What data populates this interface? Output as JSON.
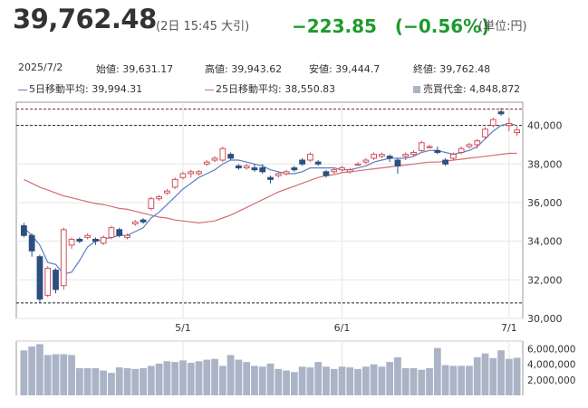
{
  "header": {
    "price": "39,762.48",
    "meta": "(2日 15:45 大引)",
    "change": "−223.85　(−0.56%)",
    "unit": "(単位:円)"
  },
  "summary": {
    "date": "2025/7/2",
    "open": "始値: 39,631.17",
    "high": "高値: 39,943.62",
    "low": "安値: 39,444.7",
    "close": "終値: 39,762.48"
  },
  "legend": {
    "ma5": "5日移動平均: 39,994.31",
    "ma25": "25日移動平均: 38,550.83",
    "turnover": "売買代金: 4,848,872"
  },
  "colors": {
    "up": "#d0505a",
    "down": "#2c4f80",
    "ma5": "#5b7fc1",
    "ma25": "#d36d72",
    "volume": "#aab4c6",
    "change": "#1e9a2d",
    "reference_line": "#8b1a1a"
  },
  "chart_data": {
    "type": "candlestick",
    "ylim": [
      30000,
      41200
    ],
    "y_ticks": [
      "40,000",
      "38,000",
      "36,000",
      "34,000",
      "32,000",
      "30,000"
    ],
    "x_ticks": [
      "5/1",
      "6/1",
      "7/1"
    ],
    "reference_lines": [
      40844,
      40000,
      30800
    ],
    "candles": [
      [
        34800,
        34950,
        34200,
        34300
      ],
      [
        34300,
        34400,
        33200,
        33500
      ],
      [
        33200,
        33300,
        30800,
        31000
      ],
      [
        31200,
        32700,
        31100,
        32600
      ],
      [
        32500,
        32600,
        31300,
        31500
      ],
      [
        31700,
        34700,
        31500,
        34600
      ],
      [
        33800,
        34200,
        33600,
        34100
      ],
      [
        34100,
        34200,
        33900,
        34000
      ],
      [
        34200,
        34400,
        34100,
        34300
      ],
      [
        34100,
        34200,
        33800,
        34000
      ],
      [
        33900,
        34300,
        33800,
        34200
      ],
      [
        34200,
        34800,
        34100,
        34700
      ],
      [
        34600,
        34700,
        34200,
        34300
      ],
      [
        34200,
        34400,
        34100,
        34300
      ],
      [
        34900,
        35100,
        34800,
        35000
      ],
      [
        35100,
        35200,
        34900,
        35000
      ],
      [
        35700,
        36300,
        35600,
        36200
      ],
      [
        36200,
        36400,
        36100,
        36300
      ],
      [
        36500,
        36700,
        36400,
        36600
      ],
      [
        36800,
        37300,
        36700,
        37200
      ],
      [
        37300,
        37600,
        37200,
        37500
      ],
      [
        37500,
        37700,
        37300,
        37600
      ],
      [
        37500,
        37700,
        37400,
        37600
      ],
      [
        38000,
        38200,
        37900,
        38100
      ],
      [
        38200,
        38400,
        38100,
        38300
      ],
      [
        38200,
        38900,
        38100,
        38800
      ],
      [
        38500,
        38600,
        38200,
        38300
      ],
      [
        37900,
        38000,
        37700,
        37800
      ],
      [
        37800,
        38000,
        37700,
        37900
      ],
      [
        37800,
        38000,
        37600,
        37700
      ],
      [
        37800,
        38000,
        37500,
        37600
      ],
      [
        37300,
        37400,
        37000,
        37200
      ],
      [
        37400,
        37600,
        37300,
        37500
      ],
      [
        37500,
        37700,
        37400,
        37600
      ],
      [
        37800,
        37900,
        37600,
        37700
      ],
      [
        38200,
        38300,
        37900,
        38000
      ],
      [
        38200,
        38600,
        38100,
        38500
      ],
      [
        38100,
        38200,
        37900,
        38000
      ],
      [
        37600,
        37700,
        37300,
        37400
      ],
      [
        37600,
        37800,
        37500,
        37700
      ],
      [
        37700,
        37900,
        37600,
        37800
      ],
      [
        37600,
        37800,
        37500,
        37700
      ],
      [
        38000,
        38100,
        37900,
        38000
      ],
      [
        38100,
        38300,
        38000,
        38200
      ],
      [
        38300,
        38600,
        38200,
        38500
      ],
      [
        38400,
        38600,
        38300,
        38500
      ],
      [
        38400,
        38500,
        38100,
        38300
      ],
      [
        38200,
        38300,
        37500,
        37900
      ],
      [
        38400,
        38600,
        38200,
        38500
      ],
      [
        38500,
        38700,
        38400,
        38600
      ],
      [
        38700,
        39200,
        38600,
        39100
      ],
      [
        38900,
        39000,
        38800,
        38900
      ],
      [
        38700,
        38900,
        38500,
        38600
      ],
      [
        38200,
        38300,
        37900,
        38000
      ],
      [
        38300,
        38600,
        38200,
        38500
      ],
      [
        38600,
        38900,
        38500,
        38800
      ],
      [
        38900,
        39100,
        38800,
        39000
      ],
      [
        39000,
        39300,
        38800,
        39200
      ],
      [
        39400,
        39900,
        39300,
        39800
      ],
      [
        40000,
        40400,
        39900,
        40300
      ],
      [
        40700,
        40900,
        40500,
        40600
      ],
      [
        40000,
        40400,
        39700,
        40100
      ],
      [
        39632,
        39944,
        39445,
        39762
      ]
    ],
    "ma5": [
      34700,
      34300,
      33800,
      32900,
      32800,
      32300,
      32400,
      33000,
      33700,
      34000,
      34100,
      34200,
      34300,
      34300,
      34500,
      34700,
      35200,
      35500,
      35900,
      36300,
      36700,
      37000,
      37300,
      37500,
      37700,
      38000,
      38200,
      38200,
      38100,
      38000,
      37900,
      37700,
      37600,
      37500,
      37500,
      37600,
      37800,
      37800,
      37800,
      37800,
      37700,
      37700,
      37800,
      37900,
      38100,
      38200,
      38300,
      38300,
      38300,
      38400,
      38600,
      38700,
      38700,
      38600,
      38500,
      38600,
      38700,
      38900,
      39300,
      39700,
      40000,
      40100,
      39994
    ],
    "ma25": [
      37200,
      37000,
      36800,
      36650,
      36500,
      36350,
      36250,
      36150,
      36050,
      35950,
      35900,
      35800,
      35700,
      35650,
      35550,
      35450,
      35350,
      35250,
      35200,
      35100,
      35050,
      35000,
      34950,
      35000,
      35050,
      35200,
      35350,
      35550,
      35750,
      35950,
      36150,
      36350,
      36550,
      36700,
      36850,
      37000,
      37150,
      37300,
      37400,
      37450,
      37550,
      37600,
      37650,
      37700,
      37750,
      37800,
      37850,
      37900,
      37950,
      38000,
      38050,
      38100,
      38100,
      38150,
      38200,
      38250,
      38300,
      38350,
      38400,
      38450,
      38500,
      38550,
      38551
    ],
    "volume_ticks": [
      "6,000,000",
      "4,000,000",
      "2,000,000"
    ],
    "volume_ylim": [
      0,
      7000000
    ],
    "volume": [
      5800000,
      6300000,
      6600000,
      5200000,
      5300000,
      5300000,
      5200000,
      3500000,
      3500000,
      3500000,
      3200000,
      2900000,
      3600000,
      3500000,
      3400000,
      3500000,
      3800000,
      4100000,
      4400000,
      4300000,
      4500000,
      4200000,
      4400000,
      4600000,
      4700000,
      3800000,
      5200000,
      4600000,
      4300000,
      3800000,
      3700000,
      4100000,
      3400000,
      3200000,
      3000000,
      3700000,
      3600000,
      4300000,
      3700000,
      3400000,
      3700000,
      3600000,
      3400000,
      3700000,
      4000000,
      3700000,
      4300000,
      4900000,
      3500000,
      3500000,
      3300000,
      3500000,
      6100000,
      3900000,
      3800000,
      3800000,
      3800000,
      4900000,
      5400000,
      4800000,
      5800000,
      4700000,
      4848872
    ],
    "last_volume_value": 4848872
  }
}
